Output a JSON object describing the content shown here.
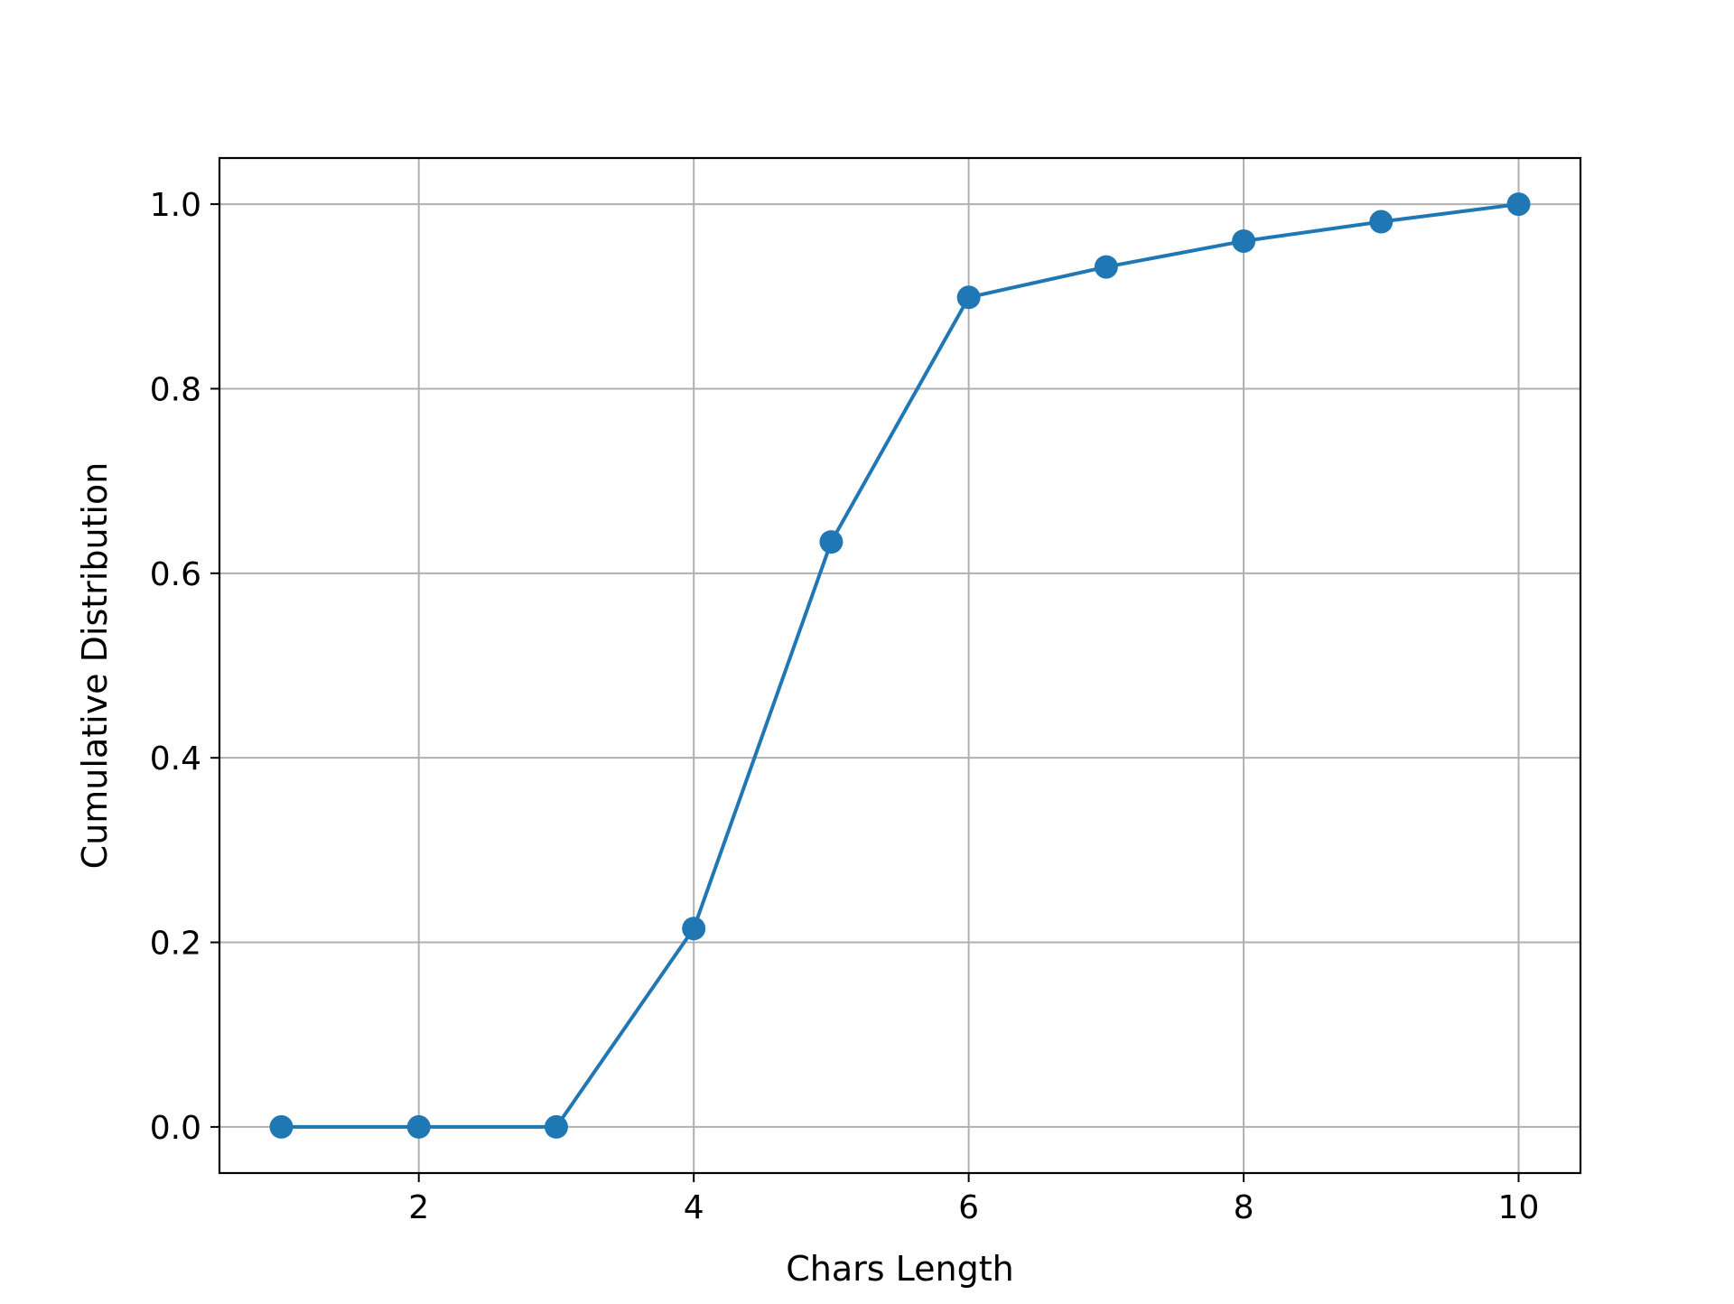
{
  "chart_data": {
    "type": "line",
    "title": "",
    "xlabel": "Chars Length",
    "ylabel": "Cumulative Distribution",
    "x": [
      1,
      2,
      3,
      4,
      5,
      6,
      7,
      8,
      9,
      10
    ],
    "series": [
      {
        "values": [
          0.0,
          0.0,
          0.0,
          0.215,
          0.634,
          0.899,
          0.932,
          0.96,
          0.981,
          1.0
        ],
        "color": "#1f77b4",
        "marker": "circle"
      }
    ],
    "xlim": [
      0.55,
      10.45
    ],
    "ylim": [
      -0.05,
      1.05
    ],
    "xticks": [
      2,
      4,
      6,
      8,
      10
    ],
    "xtick_labels": [
      "2",
      "4",
      "6",
      "8",
      "10"
    ],
    "yticks": [
      0.0,
      0.2,
      0.4,
      0.6,
      0.8,
      1.0
    ],
    "ytick_labels": [
      "0.0",
      "0.2",
      "0.4",
      "0.6",
      "0.8",
      "1.0"
    ],
    "grid": true,
    "legend": "none"
  },
  "colors": {
    "series": "#1f77b4",
    "grid": "#b0b0b0",
    "axes": "#000000"
  }
}
